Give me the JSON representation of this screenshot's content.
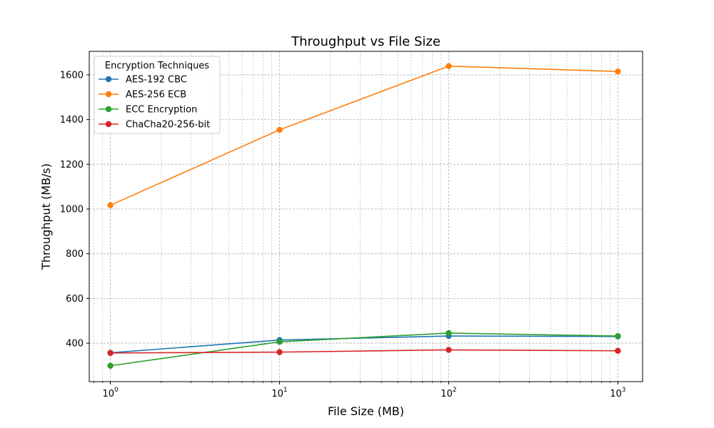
{
  "chart_data": {
    "type": "line",
    "title": "Throughput vs File Size",
    "xlabel": "File Size (MB)",
    "ylabel": "Throughput (MB/s)",
    "xscale": "log",
    "xlim": [
      0.75,
      1400
    ],
    "ylim": [
      228,
      1705
    ],
    "x": [
      1,
      10,
      100,
      1000
    ],
    "x_tick_labels": [
      {
        "value": 1,
        "base": "10",
        "exp": "0"
      },
      {
        "value": 10,
        "base": "10",
        "exp": "1"
      },
      {
        "value": 100,
        "base": "10",
        "exp": "2"
      },
      {
        "value": 1000,
        "base": "10",
        "exp": "3"
      }
    ],
    "y_ticks": [
      400,
      600,
      800,
      1000,
      1200,
      1400,
      1600
    ],
    "grid": true,
    "legend": {
      "title": "Encryption Techniques",
      "position": "top-left"
    },
    "series": [
      {
        "name": "AES-192 CBC",
        "color": "#1f77b4",
        "values": [
          357,
          414,
          432,
          430
        ]
      },
      {
        "name": "AES-256 ECB",
        "color": "#ff7f0e",
        "values": [
          1017,
          1354,
          1639,
          1615
        ]
      },
      {
        "name": "ECC Encryption",
        "color": "#2ca02c",
        "values": [
          299,
          406,
          445,
          432
        ]
      },
      {
        "name": "ChaCha20-256-bit",
        "color": "#d62728",
        "values": [
          356,
          360,
          370,
          366
        ]
      }
    ]
  }
}
